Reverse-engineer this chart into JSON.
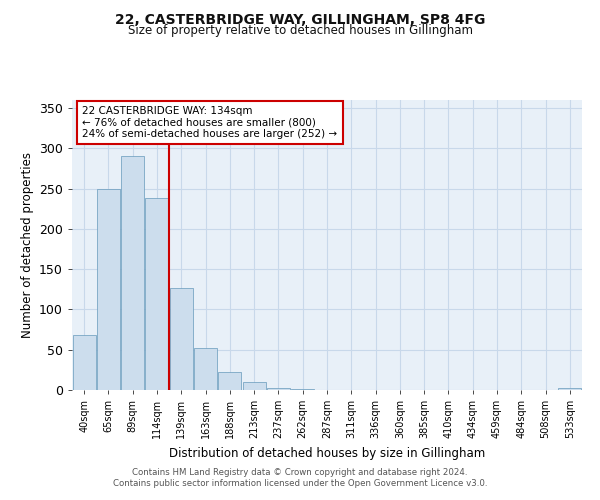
{
  "title1": "22, CASTERBRIDGE WAY, GILLINGHAM, SP8 4FG",
  "title2": "Size of property relative to detached houses in Gillingham",
  "xlabel": "Distribution of detached houses by size in Gillingham",
  "ylabel": "Number of detached properties",
  "annotation_line1": "22 CASTERBRIDGE WAY: 134sqm",
  "annotation_line2": "← 76% of detached houses are smaller (800)",
  "annotation_line3": "24% of semi-detached houses are larger (252) →",
  "bar_color": "#ccdded",
  "bar_edge_color": "#6699bb",
  "vline_color": "#cc0000",
  "annotation_box_color": "#cc0000",
  "grid_color": "#c8d8ea",
  "background_color": "#e8f0f8",
  "categories": [
    "40sqm",
    "65sqm",
    "89sqm",
    "114sqm",
    "139sqm",
    "163sqm",
    "188sqm",
    "213sqm",
    "237sqm",
    "262sqm",
    "287sqm",
    "311sqm",
    "336sqm",
    "360sqm",
    "385sqm",
    "410sqm",
    "434sqm",
    "459sqm",
    "484sqm",
    "508sqm",
    "533sqm"
  ],
  "values": [
    68,
    250,
    290,
    238,
    127,
    52,
    22,
    10,
    3,
    1,
    0,
    0,
    0,
    0,
    0,
    0,
    0,
    0,
    0,
    0,
    2
  ],
  "ylim": [
    0,
    360
  ],
  "yticks": [
    0,
    50,
    100,
    150,
    200,
    250,
    300,
    350
  ],
  "vline_x_index": 3.5,
  "footer1": "Contains HM Land Registry data © Crown copyright and database right 2024.",
  "footer2": "Contains public sector information licensed under the Open Government Licence v3.0."
}
